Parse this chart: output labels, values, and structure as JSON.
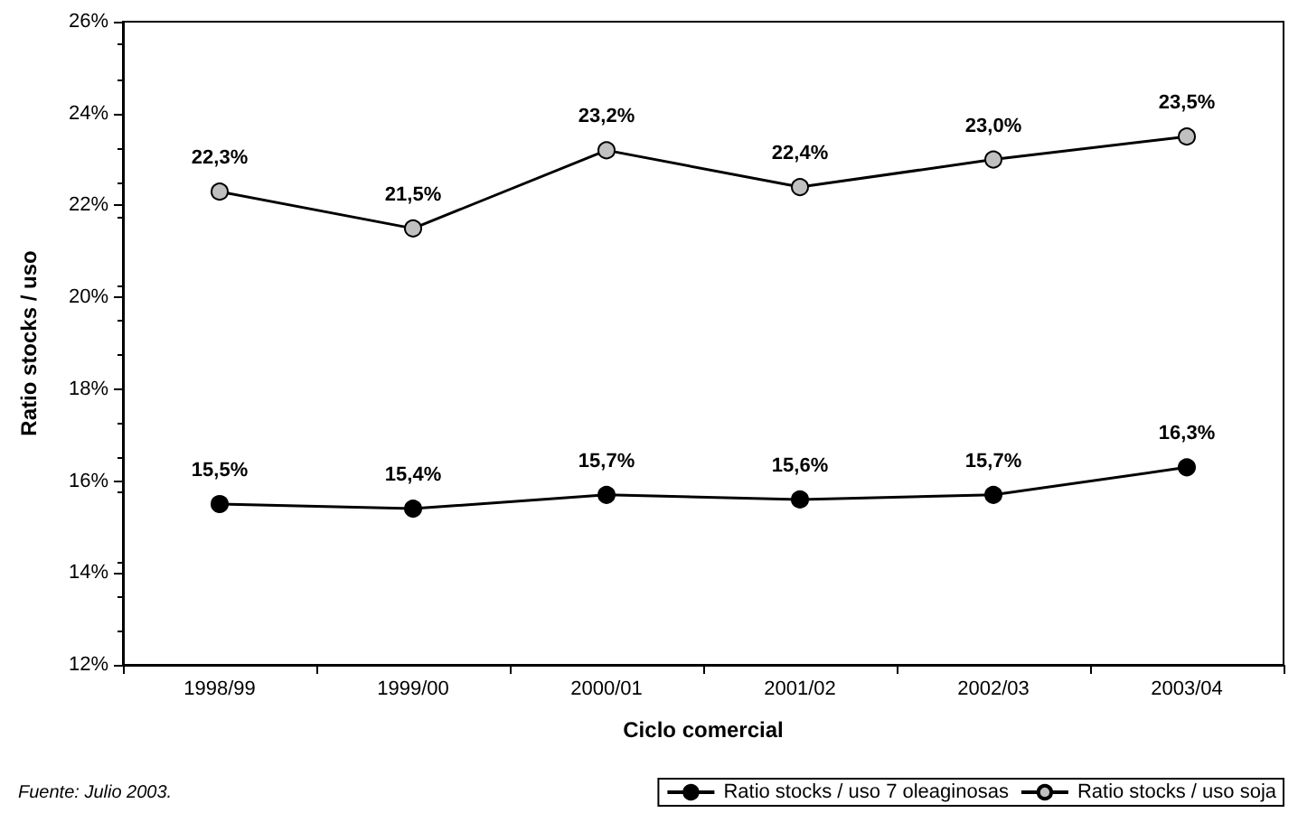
{
  "chart_data": {
    "type": "line",
    "xlabel": "Ciclo comercial",
    "ylabel": "Ratio stocks / uso",
    "categories": [
      "1998/99",
      "1999/00",
      "2000/01",
      "2001/02",
      "2002/03",
      "2003/04"
    ],
    "series": [
      {
        "name": "Ratio stocks / uso 7 oleaginosas",
        "color": "#000000",
        "values": [
          15.5,
          15.4,
          15.7,
          15.6,
          15.7,
          16.3
        ],
        "value_labels": [
          "15,5%",
          "15,4%",
          "15,7%",
          "15,6%",
          "15,7%",
          "16,3%"
        ]
      },
      {
        "name": "Ratio stocks / uso soja",
        "color": "#c0c0c0",
        "values": [
          22.3,
          21.5,
          23.2,
          22.4,
          23.0,
          23.5
        ],
        "value_labels": [
          "22,3%",
          "21,5%",
          "23,2%",
          "22,4%",
          "23,0%",
          "23,5%"
        ]
      }
    ],
    "ylim": [
      12,
      26
    ],
    "yticks": [
      {
        "value": 12,
        "label": "12%"
      },
      {
        "value": 14,
        "label": "14%"
      },
      {
        "value": 16,
        "label": "16%"
      },
      {
        "value": 18,
        "label": "18%"
      },
      {
        "value": 20,
        "label": "20%"
      },
      {
        "value": 22,
        "label": "22%"
      },
      {
        "value": 24,
        "label": "24%"
      },
      {
        "value": 26,
        "label": "26%"
      }
    ],
    "grid": false,
    "legend": "bottom right",
    "marker": "circle",
    "line_style": "solid",
    "annotations": [
      "Fuente: Julio 2003."
    ]
  }
}
